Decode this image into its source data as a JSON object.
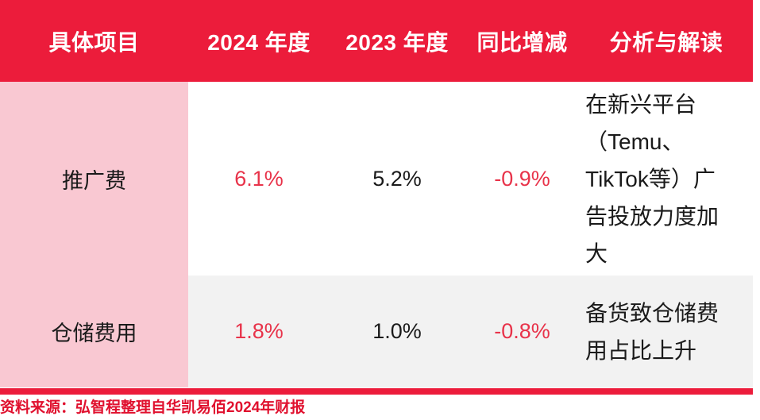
{
  "table": {
    "headers": [
      "具体项目",
      "2024 年度",
      "2023 年度",
      "同比增减",
      "分析与解读"
    ],
    "rows": [
      {
        "item": "推广费",
        "y2024": "6.1%",
        "y2023": "5.2%",
        "change": "-0.9%",
        "analysis": "在新兴平台（Temu、TikTok等）广告投放力度加大"
      },
      {
        "item": "仓储费用",
        "y2024": "1.8%",
        "y2023": "1.0%",
        "change": "-0.8%",
        "analysis": "备货致仓储费用占比上升"
      }
    ]
  },
  "source_note": "资料来源：弘智程整理自华凯易佰2024年财报",
  "colors": {
    "header_bg": "#EC1C3B",
    "item_col_bg": "#F9C8D2",
    "row2_bg": "#F2F2F2",
    "highlight_text": "#E8334A",
    "source_text": "#E0102E"
  }
}
